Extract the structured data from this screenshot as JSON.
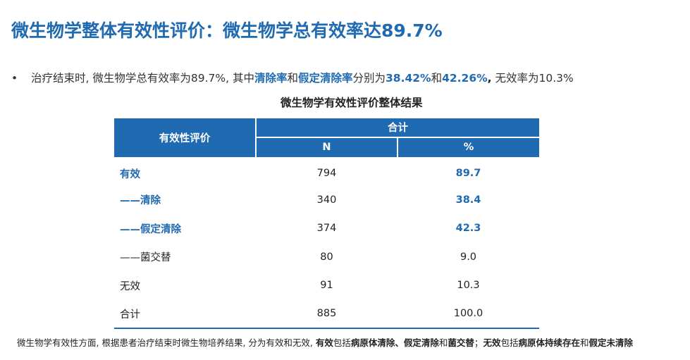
{
  "title": "微生物学整体有效性评价：微生物学总有效率达89.7%",
  "bullet": {
    "dot": "•",
    "part1": "治疗结束时, 微生物学总有效率为89.7%, 其中",
    "hl1": "清除率",
    "and1": "和",
    "hl2": "假定清除率",
    "part2": "分别为",
    "hl3": "38.42%",
    "and2": "和",
    "hl4": "42.26%",
    "comma": ",",
    "part3": " 无效率为10.3%"
  },
  "table_title": "微生物学有效性评价整体结果",
  "table": {
    "header_eval": "有效性评价",
    "header_total": "合计",
    "header_n": "N",
    "header_pct": "%",
    "rows": [
      {
        "label": "有效",
        "n": "794",
        "pct": "89.7"
      },
      {
        "label": "——清除",
        "n": "340",
        "pct": "38.4"
      },
      {
        "label": "——假定清除",
        "n": "374",
        "pct": "42.3"
      },
      {
        "label": "——菌交替",
        "n": "80",
        "pct": "9.0"
      },
      {
        "label": "无效",
        "n": "91",
        "pct": "10.3"
      },
      {
        "label": "合计",
        "n": "885",
        "pct": "100.0"
      }
    ]
  },
  "footnote": {
    "p1": "微生物学有效性方面, 根据患者治疗结束时微生物培养结果, 分为有效和无效, ",
    "b1": "有效",
    "p2": "包括",
    "b2": "病原体清除、假定清除",
    "p3": "和",
    "b3": "菌交替",
    "p4": "；",
    "b4": "无效",
    "p5": "包括",
    "b5": "病原体持续存在",
    "p6": "和",
    "b6": "假定未清除"
  },
  "colors": {
    "accent": "#1f6ab0"
  }
}
